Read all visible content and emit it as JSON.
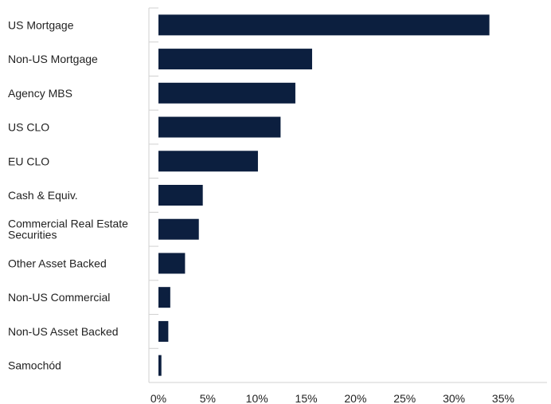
{
  "chart_data": {
    "type": "bar",
    "orientation": "horizontal",
    "categories": [
      "US Mortgage",
      "Non-US Mortgage",
      "Agency MBS",
      "US CLO",
      "EU CLO",
      "Cash & Equiv.",
      "Commercial Real Estate Securities",
      "Other Asset Backed",
      "Non-US Commercial",
      "Non-US Asset Backed",
      "Samochód"
    ],
    "category_lines": [
      [
        "US Mortgage"
      ],
      [
        "Non-US Mortgage"
      ],
      [
        "Agency MBS"
      ],
      [
        "US CLO"
      ],
      [
        "EU CLO"
      ],
      [
        "Cash & Equiv."
      ],
      [
        "Commercial Real Estate",
        "Securities"
      ],
      [
        "Other Asset Backed"
      ],
      [
        "Non-US Commercial"
      ],
      [
        "Non-US Asset Backed"
      ],
      [
        "Samochód"
      ]
    ],
    "values": [
      33.6,
      15.6,
      13.9,
      12.4,
      10.1,
      4.5,
      4.1,
      2.7,
      1.2,
      1.0,
      0.3
    ],
    "xlim": [
      0,
      35
    ],
    "xticks": [
      0,
      5,
      10,
      15,
      20,
      25,
      30,
      35
    ],
    "xtick_labels": [
      "0%",
      "5%",
      "10%",
      "15%",
      "20%",
      "25%",
      "30%",
      "35%"
    ],
    "title": "",
    "xlabel": "",
    "ylabel": "",
    "grid": false,
    "legend": "none",
    "colors": {
      "bar": "#0c1f3f",
      "axis": "#d0d0d0",
      "text": "#222222"
    }
  }
}
